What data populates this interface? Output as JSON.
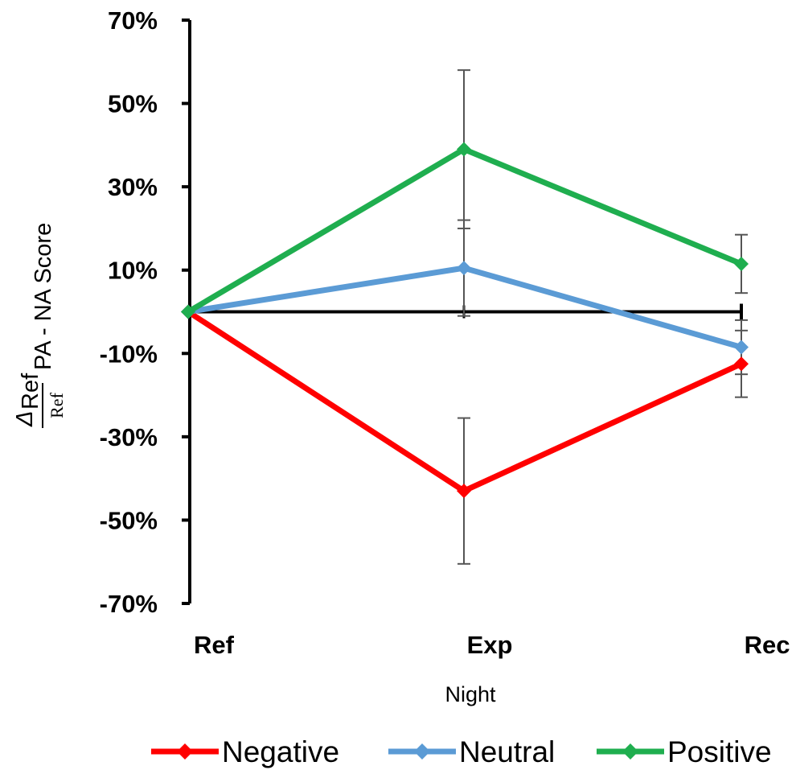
{
  "chart_data": {
    "type": "line",
    "categories": [
      "Ref",
      "Exp",
      "Rec"
    ],
    "xlabel": "Night",
    "ylabel": {
      "delta": "Δ",
      "delta_sub": "Ref",
      "denominator": "Ref",
      "text": "PA - NA Score"
    },
    "ylim": [
      -70,
      70
    ],
    "yticks": [
      70,
      50,
      30,
      10,
      -10,
      -30,
      -50,
      -70
    ],
    "ytick_labels": [
      "70%",
      "50%",
      "30%",
      "10%",
      "-10%",
      "-30%",
      "-50%",
      "-70%"
    ],
    "legend_position": "bottom",
    "grid": false,
    "series": [
      {
        "name": "Negative",
        "color": "#ff0000",
        "values": [
          0,
          -43,
          -12.5
        ],
        "error": [
          0,
          17.5,
          8
        ]
      },
      {
        "name": "Neutral",
        "color": "#5b9bd5",
        "values": [
          0,
          10.5,
          -8.5
        ],
        "error": [
          0,
          11.5,
          6.5
        ]
      },
      {
        "name": "Positive",
        "color": "#1fae4f",
        "values": [
          0,
          39,
          11.5
        ],
        "error": [
          0,
          19,
          7
        ]
      }
    ]
  }
}
